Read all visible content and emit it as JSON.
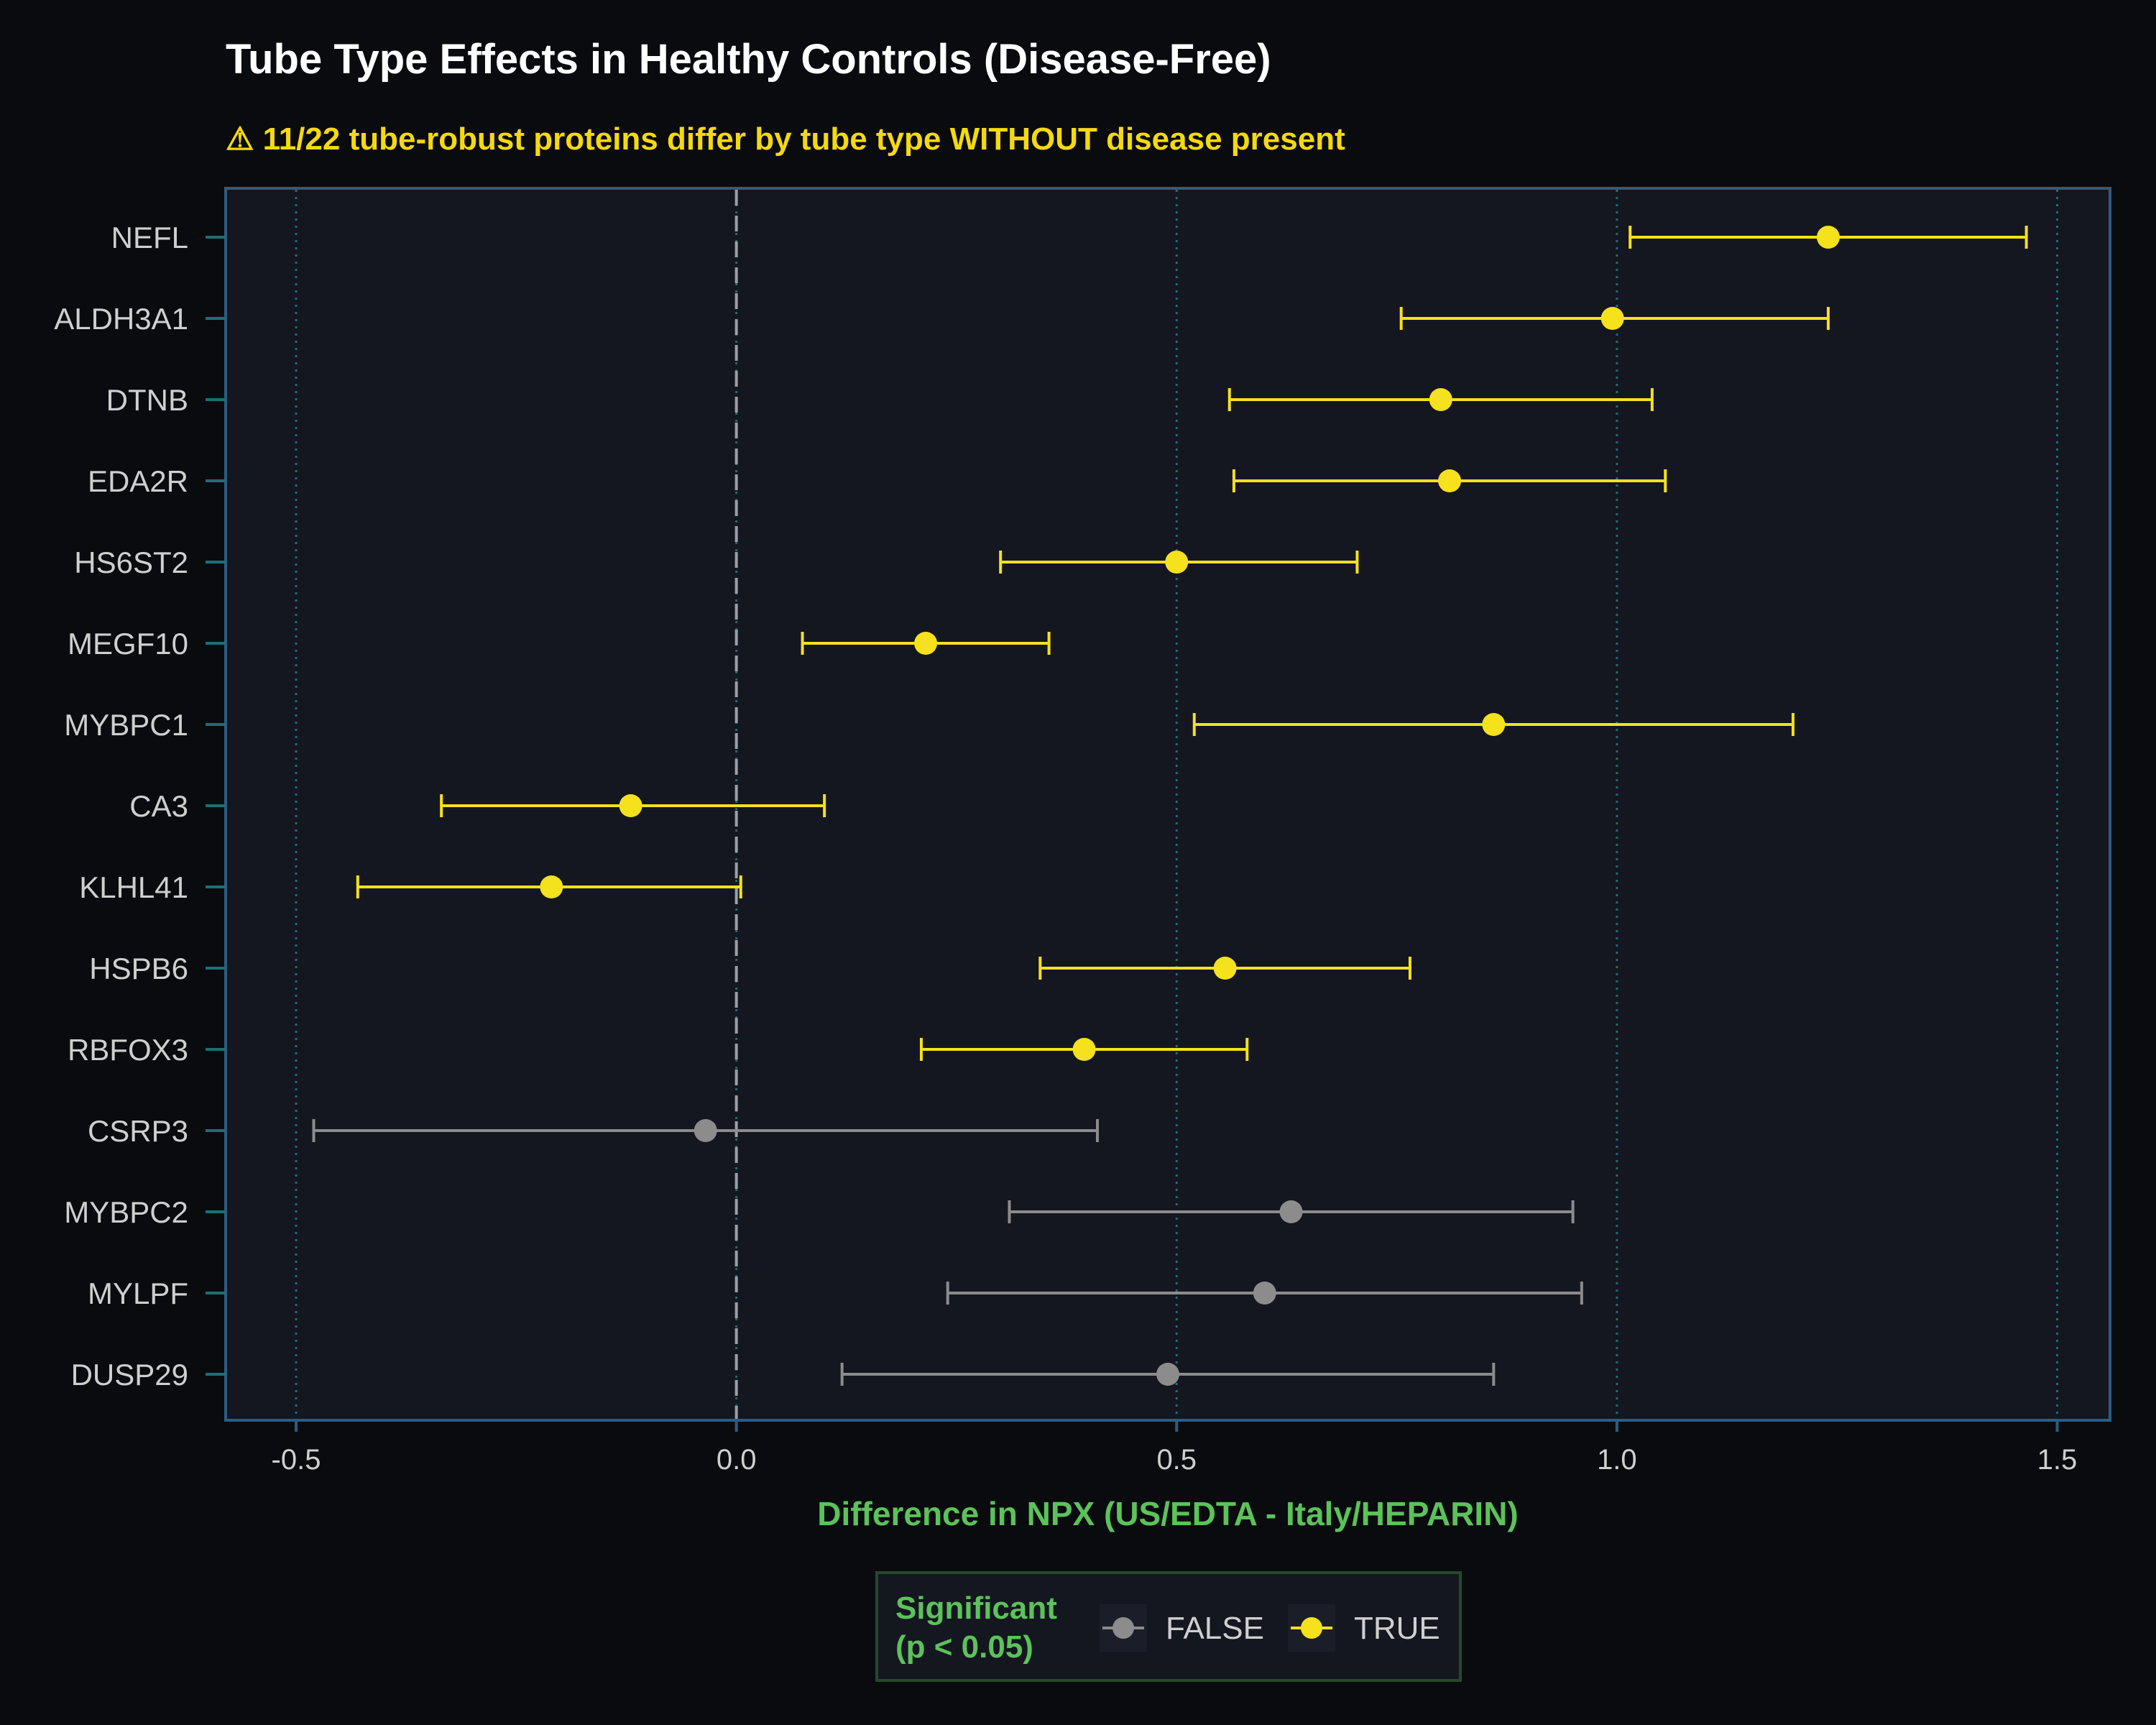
{
  "chart_data": {
    "type": "forest",
    "title": "Tube Type Effects in Healthy Controls (Disease-Free)",
    "subtitle": "⚠ 11/22 tube-robust proteins differ by tube type WITHOUT disease present",
    "xlabel": "Difference in NPX (US/EDTA - Italy/HEPARIN)",
    "xlim": [
      -0.58,
      1.56
    ],
    "xticks": [
      -0.5,
      0.0,
      0.5,
      1.0,
      1.5
    ],
    "xtick_labels": [
      "-0.5",
      "0.0",
      "0.5",
      "1.0",
      "1.5"
    ],
    "reference_line": 0.0,
    "grid": "vertical dotted",
    "legend": {
      "title_line1": "Significant",
      "title_line2": "(p < 0.05)",
      "position": "bottom",
      "items": [
        {
          "label": "FALSE",
          "color": "#8c8c8c"
        },
        {
          "label": "TRUE",
          "color": "#f5e11c"
        }
      ]
    },
    "proteins": [
      {
        "name": "NEFL",
        "estimate": 1.24,
        "lower": 1.015,
        "upper": 1.465,
        "significant": true
      },
      {
        "name": "ALDH3A1",
        "estimate": 0.995,
        "lower": 0.755,
        "upper": 1.24,
        "significant": true
      },
      {
        "name": "DTNB",
        "estimate": 0.8,
        "lower": 0.56,
        "upper": 1.04,
        "significant": true
      },
      {
        "name": "EDA2R",
        "estimate": 0.81,
        "lower": 0.565,
        "upper": 1.055,
        "significant": true
      },
      {
        "name": "HS6ST2",
        "estimate": 0.5,
        "lower": 0.3,
        "upper": 0.705,
        "significant": true
      },
      {
        "name": "MEGF10",
        "estimate": 0.215,
        "lower": 0.075,
        "upper": 0.355,
        "significant": true
      },
      {
        "name": "MYBPC1",
        "estimate": 0.86,
        "lower": 0.52,
        "upper": 1.2,
        "significant": true
      },
      {
        "name": "CA3",
        "estimate": -0.12,
        "lower": -0.335,
        "upper": 0.1,
        "significant": true
      },
      {
        "name": "KLHL41",
        "estimate": -0.21,
        "lower": -0.43,
        "upper": 0.005,
        "significant": true
      },
      {
        "name": "HSPB6",
        "estimate": 0.555,
        "lower": 0.345,
        "upper": 0.765,
        "significant": true
      },
      {
        "name": "RBFOX3",
        "estimate": 0.395,
        "lower": 0.21,
        "upper": 0.58,
        "significant": true
      },
      {
        "name": "CSRP3",
        "estimate": -0.035,
        "lower": -0.48,
        "upper": 0.41,
        "significant": false
      },
      {
        "name": "MYBPC2",
        "estimate": 0.63,
        "lower": 0.31,
        "upper": 0.95,
        "significant": false
      },
      {
        "name": "MYLPF",
        "estimate": 0.6,
        "lower": 0.24,
        "upper": 0.96,
        "significant": false
      },
      {
        "name": "DUSP29",
        "estimate": 0.49,
        "lower": 0.12,
        "upper": 0.86,
        "significant": false
      }
    ]
  },
  "colors": {
    "background": "#0a0b0f",
    "panel": "#141620",
    "panel_border": "#2c5d82",
    "grid": "#1f6e74",
    "zero_line": "#9aa0a6",
    "significant": "#f5e11c",
    "not_significant": "#8c8c8c",
    "title": "#ffffff",
    "subtitle": "#f5d90f",
    "axis_label": "#5cc25a",
    "tick_text": "#cfcfcf",
    "legend_border": "#244a2a"
  }
}
